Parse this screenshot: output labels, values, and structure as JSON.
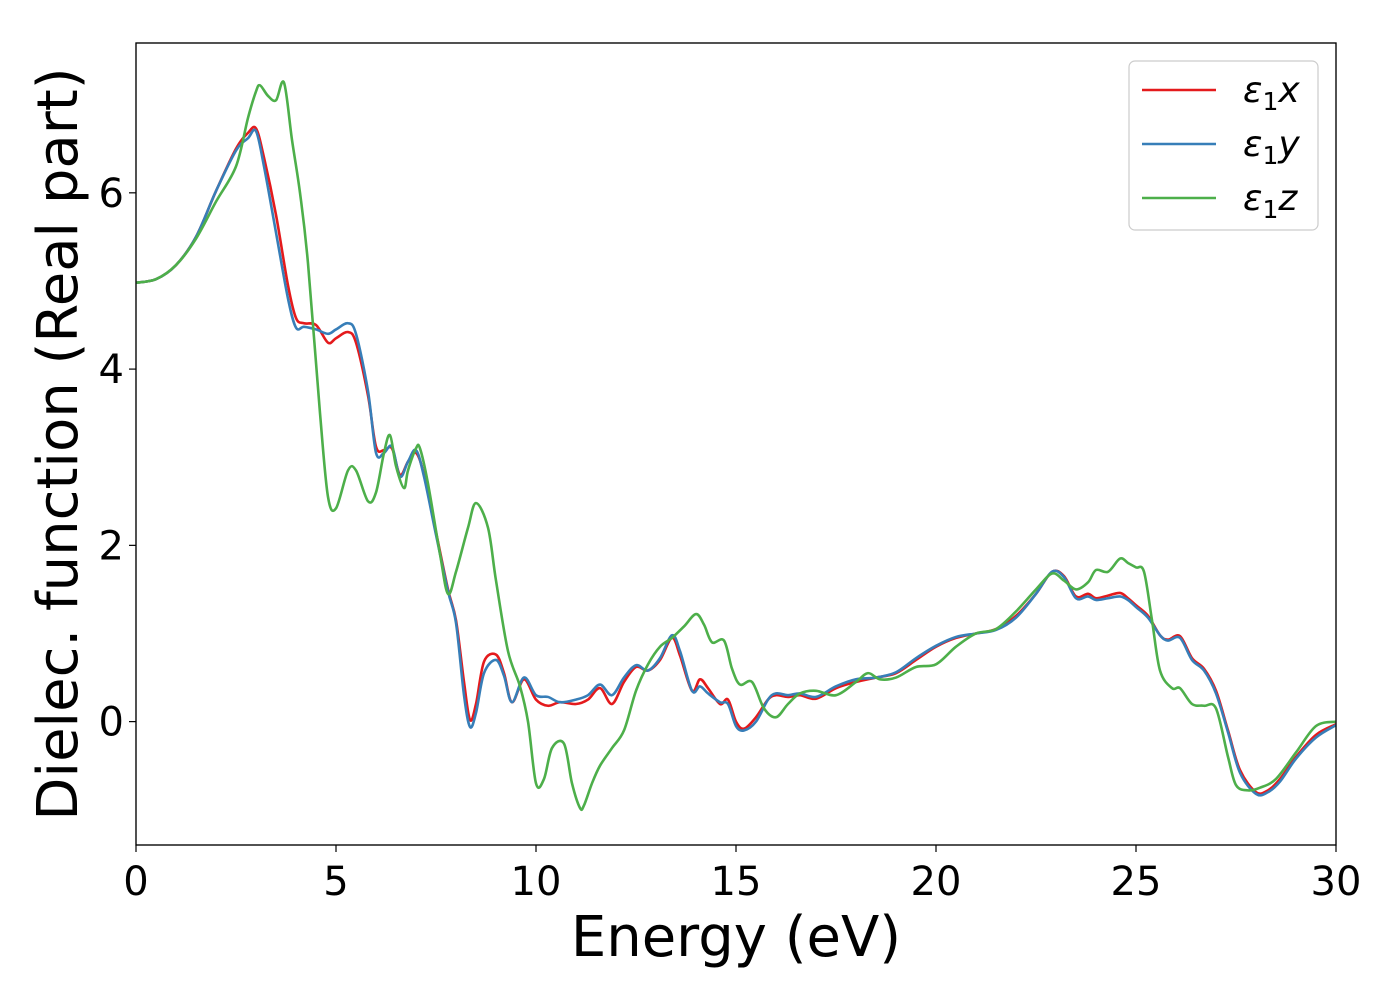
{
  "chart_data": {
    "type": "line",
    "xlabel": "Energy (eV)",
    "ylabel": "Dielec. function (Real part)",
    "xlim": [
      0,
      30
    ],
    "ylim": [
      -1.4,
      7.7
    ],
    "xticks": [
      0,
      5,
      10,
      15,
      20,
      25,
      30
    ],
    "yticks": [
      0,
      2,
      4,
      6
    ],
    "grid": false,
    "legend_position": "top-right",
    "series": [
      {
        "name": "ε1x",
        "legend_base": "ε",
        "legend_sub": "1",
        "legend_tail": "x",
        "color": "#e41a1c",
        "x": [
          0,
          0.5,
          1.0,
          1.5,
          2.0,
          2.5,
          2.8,
          3.0,
          3.2,
          3.5,
          3.8,
          4.0,
          4.2,
          4.5,
          4.8,
          5.0,
          5.3,
          5.5,
          5.8,
          6.0,
          6.2,
          6.4,
          6.6,
          6.8,
          7.0,
          7.2,
          7.5,
          7.8,
          8.0,
          8.2,
          8.35,
          8.5,
          8.7,
          9.0,
          9.2,
          9.4,
          9.7,
          10.0,
          10.3,
          10.6,
          11.0,
          11.3,
          11.6,
          11.9,
          12.2,
          12.5,
          12.8,
          13.1,
          13.4,
          13.6,
          13.9,
          14.1,
          14.3,
          14.6,
          14.8,
          15.0,
          15.2,
          15.5,
          15.8,
          16.0,
          16.3,
          16.6,
          17.0,
          17.5,
          18.0,
          18.5,
          19.0,
          19.5,
          20.0,
          20.5,
          21.0,
          21.5,
          22.0,
          22.5,
          22.9,
          23.2,
          23.5,
          23.8,
          24.0,
          24.3,
          24.6,
          24.8,
          25.0,
          25.3,
          25.6,
          25.8,
          26.1,
          26.4,
          26.7,
          27.0,
          27.3,
          27.6,
          28.0,
          28.3,
          28.6,
          29.0,
          29.5,
          30.0
        ],
        "y": [
          4.98,
          5.02,
          5.18,
          5.5,
          6.02,
          6.5,
          6.68,
          6.73,
          6.4,
          5.75,
          4.95,
          4.58,
          4.52,
          4.5,
          4.3,
          4.35,
          4.42,
          4.3,
          3.7,
          3.12,
          3.08,
          3.1,
          2.8,
          2.95,
          3.05,
          2.8,
          2.15,
          1.5,
          1.15,
          0.45,
          0.02,
          0.2,
          0.68,
          0.76,
          0.55,
          0.22,
          0.48,
          0.25,
          0.18,
          0.22,
          0.2,
          0.25,
          0.38,
          0.2,
          0.45,
          0.62,
          0.58,
          0.7,
          0.95,
          0.75,
          0.35,
          0.48,
          0.38,
          0.2,
          0.25,
          0.0,
          -0.08,
          0.05,
          0.25,
          0.3,
          0.28,
          0.3,
          0.26,
          0.38,
          0.45,
          0.5,
          0.55,
          0.7,
          0.85,
          0.95,
          1.0,
          1.05,
          1.2,
          1.45,
          1.7,
          1.65,
          1.42,
          1.45,
          1.4,
          1.43,
          1.46,
          1.4,
          1.32,
          1.2,
          0.98,
          0.93,
          0.97,
          0.72,
          0.6,
          0.35,
          -0.1,
          -0.55,
          -0.8,
          -0.78,
          -0.65,
          -0.4,
          -0.15,
          -0.03
        ]
      },
      {
        "name": "ε1y",
        "legend_base": "ε",
        "legend_sub": "1",
        "legend_tail": "y",
        "color": "#377eb8",
        "x": [
          0,
          0.5,
          1.0,
          1.5,
          2.0,
          2.5,
          2.8,
          3.0,
          3.2,
          3.5,
          3.8,
          4.0,
          4.2,
          4.5,
          4.8,
          5.0,
          5.3,
          5.5,
          5.8,
          6.0,
          6.2,
          6.4,
          6.6,
          6.8,
          7.0,
          7.2,
          7.5,
          7.8,
          8.0,
          8.2,
          8.35,
          8.5,
          8.7,
          9.0,
          9.2,
          9.4,
          9.7,
          10.0,
          10.3,
          10.6,
          11.0,
          11.3,
          11.6,
          11.9,
          12.2,
          12.5,
          12.8,
          13.1,
          13.4,
          13.6,
          13.9,
          14.1,
          14.3,
          14.6,
          14.8,
          15.0,
          15.2,
          15.5,
          15.8,
          16.0,
          16.3,
          16.6,
          17.0,
          17.5,
          18.0,
          18.5,
          19.0,
          19.5,
          20.0,
          20.5,
          21.0,
          21.5,
          22.0,
          22.5,
          22.9,
          23.2,
          23.5,
          23.8,
          24.0,
          24.3,
          24.6,
          24.8,
          25.0,
          25.3,
          25.6,
          25.8,
          26.1,
          26.4,
          26.7,
          27.0,
          27.3,
          27.6,
          28.0,
          28.3,
          28.6,
          29.0,
          29.5,
          30.0
        ],
        "y": [
          4.98,
          5.02,
          5.18,
          5.5,
          6.02,
          6.48,
          6.62,
          6.7,
          6.3,
          5.55,
          4.8,
          4.47,
          4.48,
          4.45,
          4.4,
          4.45,
          4.52,
          4.4,
          3.75,
          3.05,
          3.05,
          3.12,
          2.78,
          2.95,
          3.08,
          2.78,
          2.12,
          1.48,
          1.12,
          0.3,
          -0.06,
          0.1,
          0.55,
          0.7,
          0.52,
          0.22,
          0.5,
          0.3,
          0.28,
          0.22,
          0.25,
          0.3,
          0.42,
          0.3,
          0.5,
          0.64,
          0.58,
          0.72,
          0.98,
          0.8,
          0.35,
          0.4,
          0.32,
          0.22,
          0.2,
          -0.05,
          -0.1,
          0.0,
          0.25,
          0.32,
          0.3,
          0.32,
          0.28,
          0.4,
          0.48,
          0.5,
          0.56,
          0.72,
          0.86,
          0.96,
          1.0,
          1.04,
          1.18,
          1.45,
          1.7,
          1.64,
          1.4,
          1.42,
          1.38,
          1.4,
          1.42,
          1.38,
          1.3,
          1.18,
          0.98,
          0.92,
          0.95,
          0.7,
          0.58,
          0.32,
          -0.12,
          -0.58,
          -0.82,
          -0.8,
          -0.68,
          -0.42,
          -0.18,
          -0.04
        ]
      },
      {
        "name": "ε1z",
        "legend_base": "ε",
        "legend_sub": "1",
        "legend_tail": "z",
        "color": "#4daf4a",
        "x": [
          0,
          0.5,
          1.0,
          1.5,
          2.0,
          2.5,
          2.8,
          3.0,
          3.1,
          3.3,
          3.5,
          3.7,
          3.9,
          4.1,
          4.3,
          4.6,
          4.8,
          5.0,
          5.3,
          5.5,
          5.8,
          6.0,
          6.2,
          6.35,
          6.5,
          6.7,
          6.8,
          7.0,
          7.1,
          7.3,
          7.6,
          7.8,
          8.0,
          8.3,
          8.5,
          8.8,
          9.0,
          9.3,
          9.6,
          9.8,
          10.0,
          10.2,
          10.4,
          10.7,
          10.9,
          11.1,
          11.2,
          11.4,
          11.6,
          11.9,
          12.2,
          12.5,
          12.8,
          13.1,
          13.4,
          13.7,
          14.0,
          14.2,
          14.4,
          14.7,
          14.9,
          15.1,
          15.4,
          15.7,
          16.0,
          16.3,
          16.6,
          17.0,
          17.5,
          18.0,
          18.3,
          18.6,
          19.0,
          19.5,
          20.0,
          20.5,
          21.0,
          21.5,
          22.0,
          22.5,
          22.9,
          23.2,
          23.5,
          23.8,
          24.0,
          24.3,
          24.6,
          24.8,
          25.0,
          25.2,
          25.4,
          25.6,
          25.9,
          26.1,
          26.4,
          26.7,
          27.0,
          27.3,
          27.5,
          27.8,
          28.1,
          28.5,
          29.0,
          29.5,
          30.0
        ],
        "y": [
          4.98,
          5.02,
          5.18,
          5.48,
          5.9,
          6.3,
          6.85,
          7.15,
          7.22,
          7.1,
          7.05,
          7.25,
          6.6,
          6.0,
          5.2,
          3.5,
          2.55,
          2.42,
          2.85,
          2.85,
          2.5,
          2.6,
          3.05,
          3.25,
          2.9,
          2.65,
          2.85,
          3.1,
          3.1,
          2.7,
          1.9,
          1.45,
          1.7,
          2.2,
          2.48,
          2.2,
          1.6,
          0.8,
          0.4,
          0.0,
          -0.7,
          -0.65,
          -0.3,
          -0.25,
          -0.7,
          -0.98,
          -0.95,
          -0.7,
          -0.5,
          -0.3,
          -0.1,
          0.35,
          0.65,
          0.85,
          0.95,
          1.08,
          1.22,
          1.1,
          0.9,
          0.92,
          0.6,
          0.42,
          0.45,
          0.15,
          0.05,
          0.2,
          0.32,
          0.35,
          0.3,
          0.45,
          0.55,
          0.48,
          0.5,
          0.62,
          0.65,
          0.85,
          1.0,
          1.05,
          1.25,
          1.5,
          1.68,
          1.6,
          1.5,
          1.58,
          1.72,
          1.7,
          1.85,
          1.8,
          1.75,
          1.7,
          1.15,
          0.58,
          0.38,
          0.38,
          0.2,
          0.18,
          0.15,
          -0.4,
          -0.72,
          -0.78,
          -0.75,
          -0.65,
          -0.35,
          -0.05,
          0.0
        ]
      }
    ]
  }
}
